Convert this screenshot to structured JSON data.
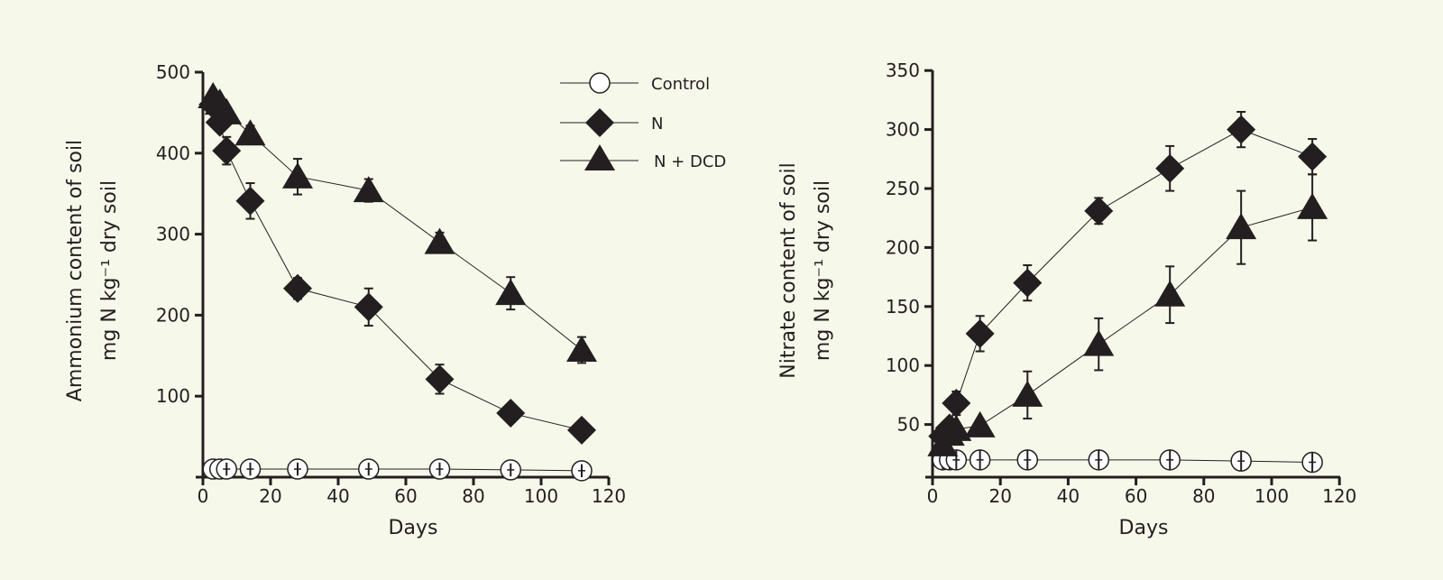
{
  "colors": {
    "background": "#f6f8ea",
    "ink": "#231f20",
    "marker_open": "#ffffff"
  },
  "legend": {
    "placement": "top-right of left chart",
    "items": [
      {
        "label": "Control",
        "marker": "circle-open"
      },
      {
        "label": "N",
        "marker": "diamond-filled"
      },
      {
        "label": "N + DCD",
        "marker": "triangle-filled"
      }
    ]
  },
  "chart_data": [
    {
      "type": "line",
      "title": "",
      "xlabel": "Days",
      "ylabel": [
        "Ammonium content of soil",
        "mg N kg⁻¹ dry soil"
      ],
      "xlim": [
        0,
        120
      ],
      "ylim": [
        0,
        500
      ],
      "xticks": [
        0,
        20,
        40,
        60,
        80,
        100,
        120
      ],
      "yticks": [
        100,
        200,
        300,
        400,
        500
      ],
      "grid": false,
      "x": [
        3,
        5,
        7,
        14,
        28,
        49,
        70,
        91,
        112
      ],
      "series": [
        {
          "name": "Control",
          "values": [
            10,
            10,
            10,
            10,
            10,
            10,
            10,
            9,
            8
          ],
          "err": [
            8,
            8,
            8,
            8,
            8,
            8,
            8,
            8,
            8
          ]
        },
        {
          "name": "N",
          "values": [
            460,
            438,
            403,
            341,
            233,
            210,
            121,
            79,
            58
          ],
          "err": [
            0,
            0,
            17,
            22,
            13,
            23,
            18,
            0,
            0
          ]
        },
        {
          "name": "N + DCD",
          "values": [
            470,
            462,
            450,
            424,
            371,
            354,
            290,
            227,
            157
          ],
          "err": [
            0,
            0,
            0,
            10,
            22,
            14,
            12,
            20,
            16
          ]
        }
      ]
    },
    {
      "type": "line",
      "title": "",
      "xlabel": "Days",
      "ylabel": [
        "Nitrate content of soil",
        "mg N kg⁻¹ dry soil"
      ],
      "xlim": [
        0,
        120
      ],
      "ylim": [
        0,
        350
      ],
      "xticks": [
        0,
        20,
        40,
        60,
        80,
        100,
        120
      ],
      "yticks": [
        50,
        100,
        150,
        200,
        250,
        300,
        350
      ],
      "grid": false,
      "x": [
        3,
        5,
        7,
        14,
        28,
        49,
        70,
        91,
        112
      ],
      "series": [
        {
          "name": "Control",
          "values": [
            20,
            20,
            20,
            20,
            20,
            20,
            20,
            19,
            18
          ],
          "err": [
            8,
            8,
            8,
            8,
            8,
            8,
            8,
            8,
            8
          ]
        },
        {
          "name": "N",
          "values": [
            40,
            47,
            68,
            127,
            170,
            231,
            267,
            300,
            277
          ],
          "err": [
            0,
            0,
            10,
            15,
            15,
            11,
            19,
            15,
            15
          ]
        },
        {
          "name": "N + DCD",
          "values": [
            33,
            42,
            46,
            49,
            75,
            118,
            160,
            217,
            234
          ],
          "err": [
            0,
            0,
            0,
            5,
            20,
            22,
            24,
            31,
            28
          ]
        }
      ]
    }
  ]
}
